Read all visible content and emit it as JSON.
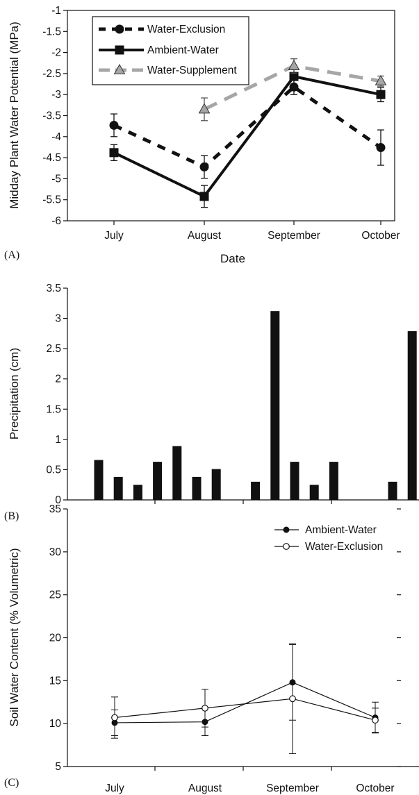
{
  "figure": {
    "colors": {
      "ink": "#111111",
      "supplement_gray": "#a6a6a6",
      "bar": "#111111",
      "background": "#ffffff"
    }
  },
  "chart_data": [
    {
      "panel": "(A)",
      "type": "line",
      "xlabel": "Date",
      "ylabel": "Midday Plant Water Potential (MPa)",
      "ylim": [
        -6,
        -1
      ],
      "yticks": [
        "-1",
        "-1.5",
        "-2",
        "-2.5",
        "-3",
        "-3.5",
        "-4",
        "-4.5",
        "-5",
        "-5.5",
        "-6"
      ],
      "categories": [
        "July",
        "August",
        "September",
        "October"
      ],
      "legend_position": "top-left",
      "series": [
        {
          "name": "Water-Exclusion",
          "style": "dashed",
          "color": "#111111",
          "marker": "circle",
          "values": [
            -3.73,
            -4.72,
            -2.82,
            -4.26
          ],
          "errors": [
            0.27,
            0.27,
            0.18,
            0.42
          ]
        },
        {
          "name": "Ambient-Water",
          "style": "solid",
          "color": "#111111",
          "marker": "square",
          "values": [
            -4.38,
            -5.42,
            -2.57,
            -3.0
          ],
          "errors": [
            0.19,
            0.26,
            0.2,
            0.17
          ]
        },
        {
          "name": "Water-Supplement",
          "style": "dashed",
          "color": "#a6a6a6",
          "marker": "triangle",
          "values": [
            null,
            -3.35,
            -2.32,
            -2.68
          ],
          "errors": [
            null,
            0.27,
            0.17,
            0.12
          ]
        }
      ]
    },
    {
      "panel": "(B)",
      "type": "bar",
      "xlabel": "",
      "ylabel": "Precipitation (cm)",
      "ylim": [
        0,
        3.5
      ],
      "yticks": [
        "0",
        "0.5",
        "1",
        "1.5",
        "2",
        "2.5",
        "3",
        "3.5"
      ],
      "values": [
        0.66,
        0.38,
        0.25,
        0.63,
        0.89,
        0.38,
        0.51,
        0,
        0.3,
        3.12,
        0.63,
        0.25,
        0.63,
        0,
        0,
        0.3,
        2.79
      ]
    },
    {
      "panel": "(C)",
      "type": "line",
      "xlabel": "",
      "ylabel": "Soil Water Content (% Volumetric)",
      "ylim": [
        5,
        35
      ],
      "yticks": [
        "5",
        "10",
        "15",
        "20",
        "25",
        "30",
        "35"
      ],
      "categories": [
        "July",
        "August",
        "September",
        "October"
      ],
      "legend_position": "top-right",
      "series": [
        {
          "name": "Ambient-Water",
          "marker": "filled-circle",
          "values": [
            10.1,
            10.2,
            14.8,
            10.7
          ],
          "errors": [
            1.5,
            1.6,
            4.4,
            1.8
          ]
        },
        {
          "name": "Water-Exclusion",
          "marker": "open-circle",
          "values": [
            10.7,
            11.8,
            12.9,
            10.4
          ],
          "errors": [
            2.4,
            2.2,
            6.4,
            1.4
          ]
        }
      ]
    }
  ]
}
